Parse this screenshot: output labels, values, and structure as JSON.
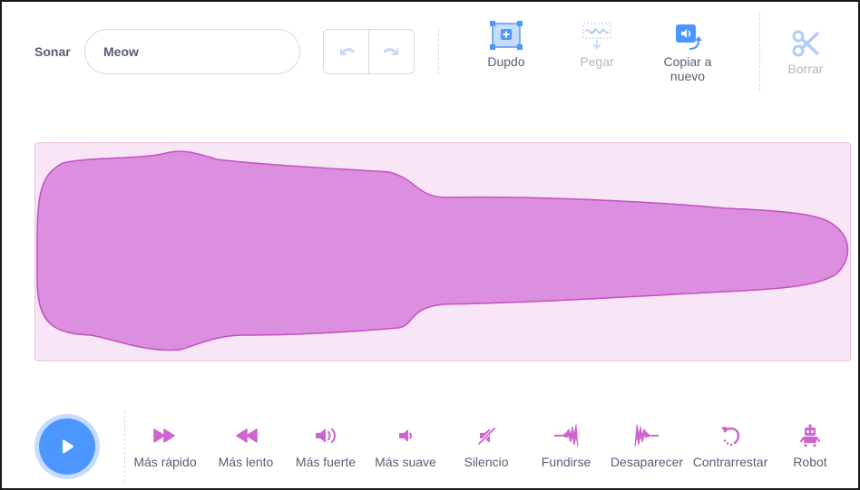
{
  "editor": {
    "sound_label": "Sonar",
    "sound_name": "Meow"
  },
  "toolbar": {
    "undo_icon": "undo-arrow-icon",
    "redo_icon": "redo-arrow-icon",
    "copy_label": "Dupdo",
    "paste_label": "Pegar",
    "copy_to_new_line1": "Copiar a",
    "copy_to_new_line2": "nuevo",
    "delete_label": "Borrar"
  },
  "effects": {
    "faster": "Más rápido",
    "slower": "Más lento",
    "louder": "Más fuerte",
    "softer": "Más suave",
    "mute": "Silencio",
    "fade_in": "Fundirse",
    "fade_out": "Desaparecer",
    "reverse": "Contrarrestar",
    "robot": "Robot"
  },
  "colors": {
    "accent": "#4c97ff",
    "waveform_fill": "#dc8fdf",
    "waveform_stroke": "#c24fc4",
    "waveform_bg": "#f8e5f6",
    "effect_icon": "#cf63cf",
    "disabled": "#b3b8c4"
  }
}
